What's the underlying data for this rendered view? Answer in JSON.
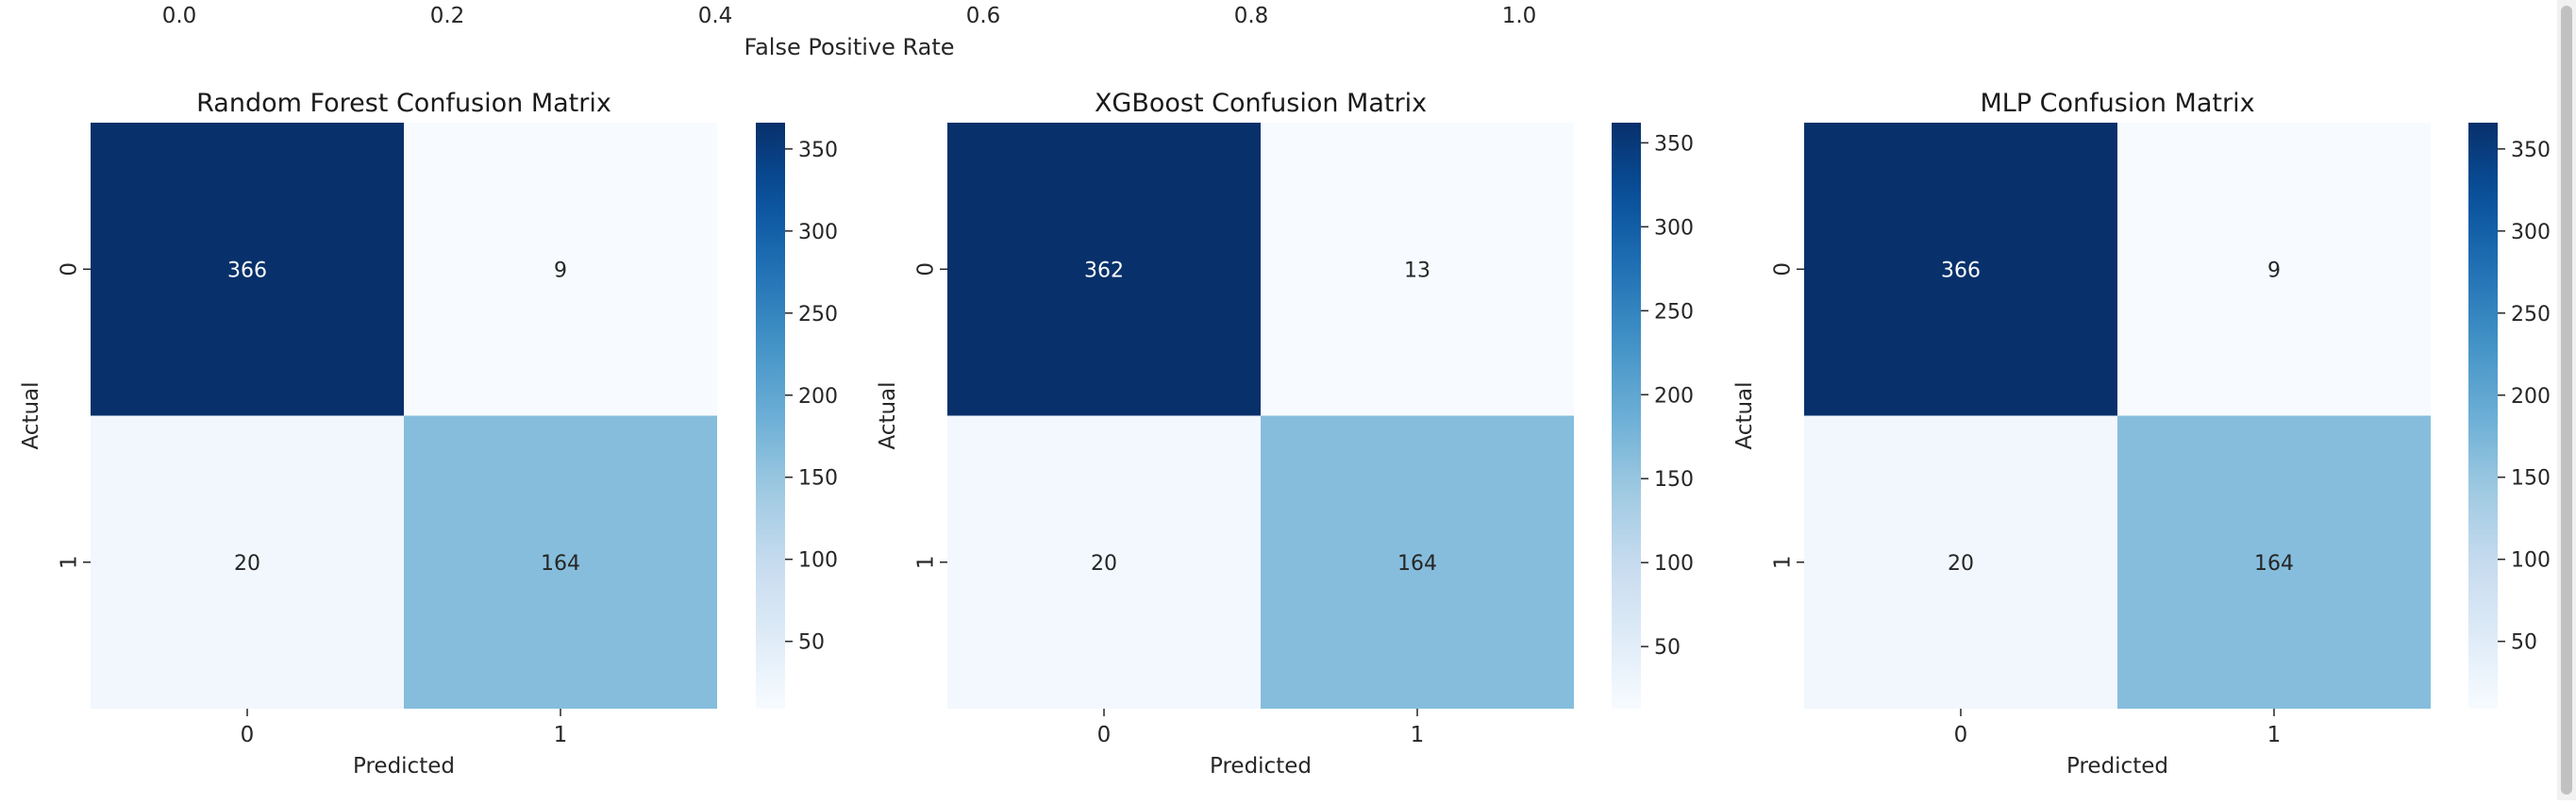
{
  "chart_data": {
    "type": "heatmap",
    "top_axis": {
      "tick_labels": [
        "0.0",
        "0.2",
        "0.4",
        "0.6",
        "0.8",
        "1.0"
      ],
      "label": "False Positive Rate"
    },
    "colormap": "Blues",
    "panels": [
      {
        "title": "Random Forest Confusion Matrix",
        "xlabel": "Predicted",
        "ylabel": "Actual",
        "x_categories": [
          "0",
          "1"
        ],
        "y_categories": [
          "0",
          "1"
        ],
        "matrix": [
          [
            366,
            9
          ],
          [
            20,
            164
          ]
        ],
        "colorbar": {
          "range": [
            9,
            366
          ],
          "ticks": [
            50,
            100,
            150,
            200,
            250,
            300,
            350
          ]
        }
      },
      {
        "title": "XGBoost Confusion Matrix",
        "xlabel": "Predicted",
        "ylabel": "Actual",
        "x_categories": [
          "0",
          "1"
        ],
        "y_categories": [
          "0",
          "1"
        ],
        "matrix": [
          [
            362,
            13
          ],
          [
            20,
            164
          ]
        ],
        "colorbar": {
          "range": [
            13,
            362
          ],
          "ticks": [
            50,
            100,
            150,
            200,
            250,
            300,
            350
          ]
        }
      },
      {
        "title": "MLP Confusion Matrix",
        "xlabel": "Predicted",
        "ylabel": "Actual",
        "x_categories": [
          "0",
          "1"
        ],
        "y_categories": [
          "0",
          "1"
        ],
        "matrix": [
          [
            366,
            9
          ],
          [
            20,
            164
          ]
        ],
        "colorbar": {
          "range": [
            9,
            366
          ],
          "ticks": [
            50,
            100,
            150,
            200,
            250,
            300,
            350
          ]
        }
      }
    ]
  }
}
